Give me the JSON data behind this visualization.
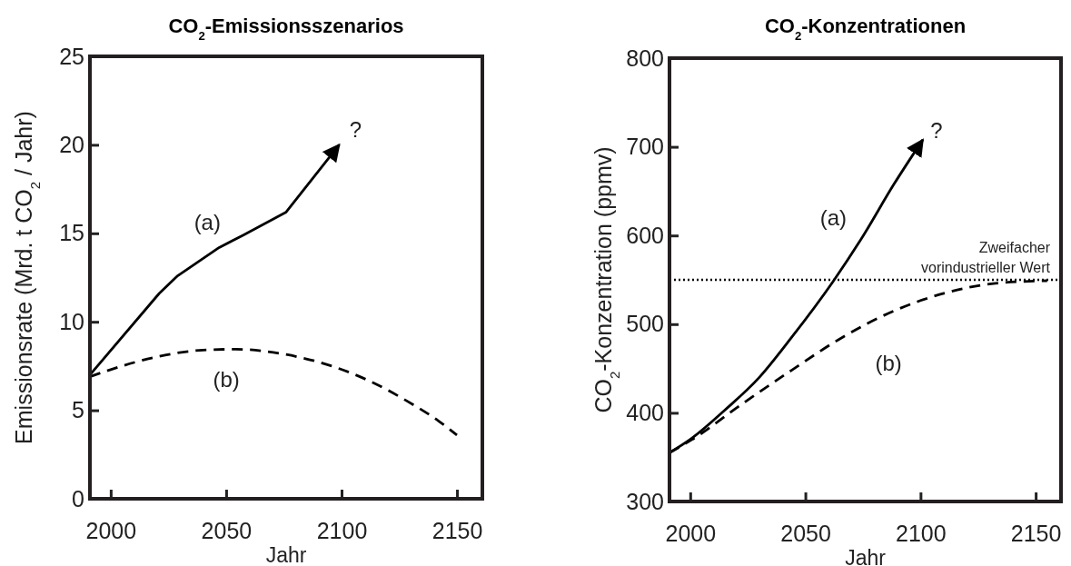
{
  "chart_data": [
    {
      "type": "line",
      "title": "CO$_{2}$-Emissionsszenarios",
      "xlabel": "Jahr",
      "ylabel": "Emissionsrate (Mrd. t CO$_{2}$ / Jahr)",
      "xlim": [
        1991,
        2161
      ],
      "xticks": [
        2000,
        2050,
        2100,
        2150
      ],
      "ylim": [
        0,
        25
      ],
      "yticks": [
        0,
        5,
        10,
        15,
        20,
        25
      ],
      "series": [
        {
          "name": "(a)",
          "color": "#000000",
          "line_style": "solid",
          "x": [
            1991,
            2021,
            2029,
            2047,
            2057.5,
            2076,
            2099
          ],
          "values": [
            7,
            11.6,
            12.6,
            14.2,
            14.9,
            16.2,
            20
          ]
        },
        {
          "name": "(b)",
          "color": "#000000",
          "line_style": "dashed",
          "x": [
            1991,
            2000,
            2021,
            2040,
            2054,
            2076,
            2098,
            2113,
            2128,
            2142,
            2150
          ],
          "values": [
            6.9,
            7.3,
            8.05,
            8.4,
            8.45,
            8.15,
            7.4,
            6.6,
            5.55,
            4.4,
            3.6
          ]
        }
      ],
      "annotations": [
        "?"
      ]
    },
    {
      "type": "line",
      "title": "CO$_{2}$-Konzentrationen",
      "xlabel": "Jahr",
      "ylabel": "CO$_{2}$-Konzentration (ppmv)",
      "xlim": [
        1991,
        2161
      ],
      "xticks": [
        2000,
        2050,
        2100,
        2150
      ],
      "ylim": [
        300,
        800
      ],
      "yticks": [
        300,
        400,
        500,
        600,
        700,
        800
      ],
      "series": [
        {
          "name": "(a)",
          "color": "#000000",
          "line_style": "solid",
          "x": [
            1991,
            2000,
            2015,
            2030,
            2044,
            2062,
            2074,
            2088.5,
            2101
          ],
          "values": [
            355,
            370,
            403,
            440,
            485,
            548,
            595,
            658,
            708
          ]
        },
        {
          "name": "(b)",
          "color": "#000000",
          "line_style": "dashed",
          "x": [
            1991,
            2001.5,
            2022,
            2044,
            2066,
            2088.5,
            2110.5,
            2132.5,
            2155
          ],
          "values": [
            355,
            371,
            409,
            448,
            485,
            515,
            535,
            546,
            549
          ]
        }
      ],
      "ref_lines": [
        {
          "axis": "y",
          "value": 550,
          "label": "Zweifacher vorindustrieller Wert",
          "line_style": "dotted",
          "color": "#000000"
        }
      ],
      "annotations": [
        "?"
      ]
    }
  ]
}
